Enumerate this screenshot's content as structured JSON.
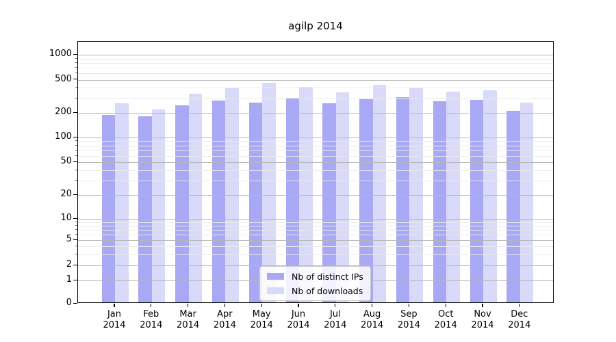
{
  "title": "agilp 2014",
  "chart_data": {
    "type": "bar",
    "title": "agilp 2014",
    "categories": [
      "Jan 2014",
      "Feb 2014",
      "Mar 2014",
      "Apr 2014",
      "May 2014",
      "Jun 2014",
      "Jul 2014",
      "Aug 2014",
      "Sep 2014",
      "Oct 2014",
      "Nov 2014",
      "Dec 2014"
    ],
    "series": [
      {
        "name": "Nb of distinct IPs",
        "color": "#a8a8f5",
        "values": [
          190,
          180,
          245,
          280,
          265,
          305,
          260,
          290,
          310,
          275,
          285,
          210
        ]
      },
      {
        "name": "Nb of downloads",
        "color": "#d9d9f9",
        "values": [
          260,
          220,
          340,
          405,
          460,
          410,
          350,
          430,
          405,
          360,
          375,
          265
        ]
      }
    ],
    "xlabel": "",
    "ylabel": "",
    "yticks": [
      0,
      1,
      2,
      5,
      10,
      20,
      50,
      100,
      200,
      500,
      1000
    ],
    "yscale": "log-like with 0 baseline",
    "ylim": [
      0,
      1400
    ],
    "grid": true,
    "grid_major_color": "#b6b6b6",
    "grid_minor_color": "#eaeaea",
    "legend_position": "lower center",
    "axis_color": "#000000",
    "background_color": "#ffffff"
  }
}
